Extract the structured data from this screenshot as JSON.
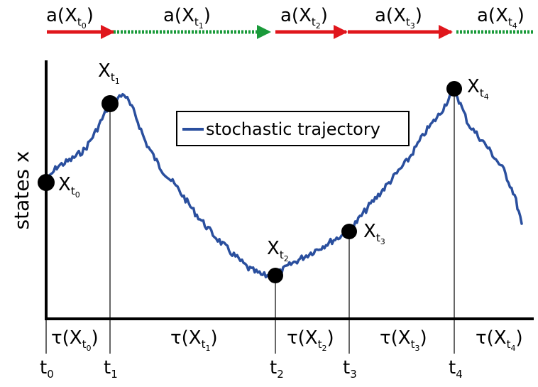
{
  "figure": {
    "y_axis_label": "states x",
    "legend": {
      "label": "stochastic trajectory",
      "line_color": "#2a4f9e"
    },
    "colors": {
      "trajectory": "#2a4f9e",
      "action_red": "#e0161c",
      "action_green": "#1a9a3a",
      "point": "#000000"
    },
    "actions": [
      {
        "base": "a(X",
        "sub": "t",
        "subsub": "0",
        "close": ")",
        "segment_style": "red-arrow"
      },
      {
        "base": "a(X",
        "sub": "t",
        "subsub": "1",
        "close": ")",
        "segment_style": "green-dashed-arrow"
      },
      {
        "base": "a(X",
        "sub": "t",
        "subsub": "2",
        "close": ")",
        "segment_style": "red-arrow"
      },
      {
        "base": "a(X",
        "sub": "t",
        "subsub": "3",
        "close": ")",
        "segment_style": "red-arrow"
      },
      {
        "base": "a(X",
        "sub": "t",
        "subsub": "4",
        "close": ")",
        "segment_style": "green-dashed"
      }
    ],
    "points": [
      {
        "base": "X",
        "sub": "t",
        "subsub": "0"
      },
      {
        "base": "X",
        "sub": "t",
        "subsub": "1"
      },
      {
        "base": "X",
        "sub": "t",
        "subsub": "2"
      },
      {
        "base": "X",
        "sub": "t",
        "subsub": "3"
      },
      {
        "base": "X",
        "sub": "t",
        "subsub": "4"
      }
    ],
    "durations": [
      {
        "base": "τ(X",
        "sub": "t",
        "subsub": "0",
        "close": ")"
      },
      {
        "base": "τ(X",
        "sub": "t",
        "subsub": "1",
        "close": ")"
      },
      {
        "base": "τ(X",
        "sub": "t",
        "subsub": "2",
        "close": ")"
      },
      {
        "base": "τ(X",
        "sub": "t",
        "subsub": "3",
        "close": ")"
      },
      {
        "base": "τ(X",
        "sub": "t",
        "subsub": "4",
        "close": ")"
      }
    ],
    "times": [
      {
        "base": "t",
        "sub": "0"
      },
      {
        "base": "t",
        "sub": "1"
      },
      {
        "base": "t",
        "sub": "2"
      },
      {
        "base": "t",
        "sub": "3"
      },
      {
        "base": "t",
        "sub": "4"
      }
    ]
  }
}
